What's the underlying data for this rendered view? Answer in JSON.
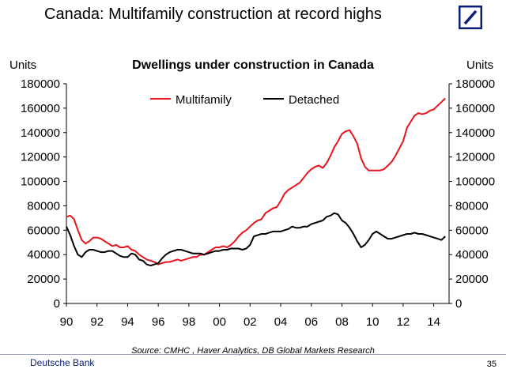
{
  "slide": {
    "title": "Canada: Multifamily construction at record highs",
    "source": "Source: CMHC , Haver Analytics, DB Global Markets Research",
    "brand": "Deutsche Bank",
    "page_number": "35"
  },
  "colors": {
    "multifamily": "#e8131b",
    "detached": "#000000",
    "brand": "#0a1e7b"
  },
  "icons": {
    "logo": "deutsche-bank-logo-icon"
  },
  "chart_data": {
    "type": "line",
    "title": "Dwellings under construction in Canada",
    "ylabel_left": "Units",
    "ylabel_right": "Units",
    "ylim": [
      0,
      180000
    ],
    "yticks": [
      0,
      20000,
      40000,
      60000,
      80000,
      100000,
      120000,
      140000,
      160000,
      180000
    ],
    "xlim": [
      1990,
      2015
    ],
    "xticks": [
      1990,
      1992,
      1994,
      1996,
      1998,
      2000,
      2002,
      2004,
      2006,
      2008,
      2010,
      2012,
      2014
    ],
    "xtick_labels": [
      "90",
      "92",
      "94",
      "96",
      "98",
      "00",
      "02",
      "04",
      "06",
      "08",
      "10",
      "12",
      "14"
    ],
    "grid": false,
    "legend_position": "top",
    "series": [
      {
        "name": "Multifamily",
        "color": "#e8131b",
        "x": [
          1990.0,
          1990.25,
          1990.5,
          1990.75,
          1991.0,
          1991.25,
          1991.5,
          1991.75,
          1992.0,
          1992.25,
          1992.5,
          1992.75,
          1993.0,
          1993.25,
          1993.5,
          1993.75,
          1994.0,
          1994.25,
          1994.5,
          1994.75,
          1995.0,
          1995.25,
          1995.5,
          1995.75,
          1996.0,
          1996.25,
          1996.5,
          1996.75,
          1997.0,
          1997.25,
          1997.5,
          1997.75,
          1998.0,
          1998.25,
          1998.5,
          1998.75,
          1999.0,
          1999.25,
          1999.5,
          1999.75,
          2000.0,
          2000.25,
          2000.5,
          2000.75,
          2001.0,
          2001.25,
          2001.5,
          2001.75,
          2002.0,
          2002.25,
          2002.5,
          2002.75,
          2003.0,
          2003.25,
          2003.5,
          2003.75,
          2004.0,
          2004.25,
          2004.5,
          2004.75,
          2005.0,
          2005.25,
          2005.5,
          2005.75,
          2006.0,
          2006.25,
          2006.5,
          2006.75,
          2007.0,
          2007.25,
          2007.5,
          2007.75,
          2008.0,
          2008.25,
          2008.5,
          2008.75,
          2009.0,
          2009.25,
          2009.5,
          2009.75,
          2010.0,
          2010.25,
          2010.5,
          2010.75,
          2011.0,
          2011.25,
          2011.5,
          2011.75,
          2012.0,
          2012.25,
          2012.5,
          2012.75,
          2013.0,
          2013.25,
          2013.5,
          2013.75,
          2014.0,
          2014.25,
          2014.5,
          2014.75
        ],
        "values": [
          71000,
          72000,
          69000,
          60000,
          52000,
          49000,
          51000,
          54000,
          54000,
          53000,
          51000,
          49000,
          47000,
          48000,
          46000,
          46000,
          47000,
          44000,
          43000,
          40000,
          38000,
          36000,
          35000,
          34000,
          32000,
          33000,
          34000,
          34000,
          35000,
          36000,
          35000,
          36000,
          37000,
          38000,
          38000,
          40000,
          40000,
          42000,
          44000,
          46000,
          46000,
          47000,
          46000,
          48000,
          51000,
          55000,
          58000,
          60000,
          63000,
          66000,
          68000,
          69000,
          74000,
          76000,
          78000,
          79000,
          84000,
          90000,
          93000,
          95000,
          97000,
          99000,
          103000,
          107000,
          110000,
          112000,
          113000,
          111000,
          115000,
          121000,
          128000,
          133000,
          139000,
          141000,
          142000,
          137000,
          131000,
          119000,
          112000,
          109000,
          109000,
          109000,
          109000,
          110000,
          113000,
          116000,
          121000,
          127000,
          133000,
          144000,
          149000,
          154000,
          156000,
          155000,
          156000,
          158000,
          159000,
          162000,
          165000,
          168000
        ]
      },
      {
        "name": "Detached",
        "color": "#000000",
        "x": [
          1990.0,
          1990.25,
          1990.5,
          1990.75,
          1991.0,
          1991.25,
          1991.5,
          1991.75,
          1992.0,
          1992.25,
          1992.5,
          1992.75,
          1993.0,
          1993.25,
          1993.5,
          1993.75,
          1994.0,
          1994.25,
          1994.5,
          1994.75,
          1995.0,
          1995.25,
          1995.5,
          1995.75,
          1996.0,
          1996.25,
          1996.5,
          1996.75,
          1997.0,
          1997.25,
          1997.5,
          1997.75,
          1998.0,
          1998.25,
          1998.5,
          1998.75,
          1999.0,
          1999.25,
          1999.5,
          1999.75,
          2000.0,
          2000.25,
          2000.5,
          2000.75,
          2001.0,
          2001.25,
          2001.5,
          2001.75,
          2002.0,
          2002.25,
          2002.5,
          2002.75,
          2003.0,
          2003.25,
          2003.5,
          2003.75,
          2004.0,
          2004.25,
          2004.5,
          2004.75,
          2005.0,
          2005.25,
          2005.5,
          2005.75,
          2006.0,
          2006.25,
          2006.5,
          2006.75,
          2007.0,
          2007.25,
          2007.5,
          2007.75,
          2008.0,
          2008.25,
          2008.5,
          2008.75,
          2009.0,
          2009.25,
          2009.5,
          2009.75,
          2010.0,
          2010.25,
          2010.5,
          2010.75,
          2011.0,
          2011.25,
          2011.5,
          2011.75,
          2012.0,
          2012.25,
          2012.5,
          2012.75,
          2013.0,
          2013.25,
          2013.5,
          2013.75,
          2014.0,
          2014.25,
          2014.5,
          2014.75
        ],
        "values": [
          63000,
          56000,
          47000,
          40000,
          38000,
          42000,
          44000,
          44000,
          43000,
          42000,
          42000,
          43000,
          43000,
          41000,
          39000,
          38000,
          38000,
          41000,
          40000,
          36000,
          35000,
          32000,
          31000,
          32000,
          33000,
          37000,
          40000,
          42000,
          43000,
          44000,
          44000,
          43000,
          42000,
          41000,
          41000,
          41000,
          40000,
          41000,
          42000,
          43000,
          43000,
          44000,
          44000,
          45000,
          45000,
          45000,
          44000,
          45000,
          48000,
          55000,
          56000,
          57000,
          57000,
          58000,
          59000,
          59000,
          59000,
          60000,
          61000,
          63000,
          62000,
          62000,
          63000,
          63000,
          65000,
          66000,
          67000,
          68000,
          71000,
          72000,
          74000,
          73000,
          68000,
          66000,
          62000,
          57000,
          51000,
          46000,
          48000,
          52000,
          57000,
          59000,
          57000,
          55000,
          53000,
          53000,
          54000,
          55000,
          56000,
          57000,
          57000,
          58000,
          57000,
          57000,
          56000,
          55000,
          54000,
          53000,
          52000,
          55000
        ]
      }
    ]
  }
}
